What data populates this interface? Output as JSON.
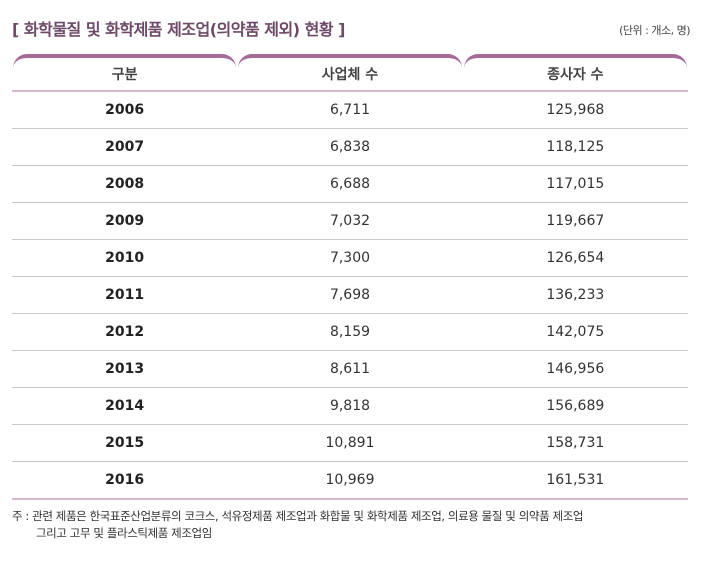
{
  "title": "[ 화학물질 및 화학제품 제조업(의약품 제외) 현황 ]",
  "unit": "(단위 : 개소, 명)",
  "headers": [
    "구분",
    "사업체 수",
    "종사자 수"
  ],
  "rows": [
    [
      "2006",
      "6,711",
      "125,968"
    ],
    [
      "2007",
      "6,838",
      "118,125"
    ],
    [
      "2008",
      "6,688",
      "117,015"
    ],
    [
      "2009",
      "7,032",
      "119,667"
    ],
    [
      "2010",
      "7,300",
      "126,654"
    ],
    [
      "2011",
      "7,698",
      "136,233"
    ],
    [
      "2012",
      "8,159",
      "142,075"
    ],
    [
      "2013",
      "8,611",
      "146,956"
    ],
    [
      "2014",
      "9,818",
      "156,689"
    ],
    [
      "2015",
      "10,891",
      "158,731"
    ],
    [
      "2016",
      "10,969",
      "161,531"
    ]
  ],
  "note_line1": "주 : 관련 제품은 한국표준산업분류의 코크스, 석유정제품 제조업과 화합물 및 화학제품 제조업, 의료용 물질 및 의약품 제조업",
  "note_line2": "그리고 고무 및 플라스틱제품 제조업임"
}
